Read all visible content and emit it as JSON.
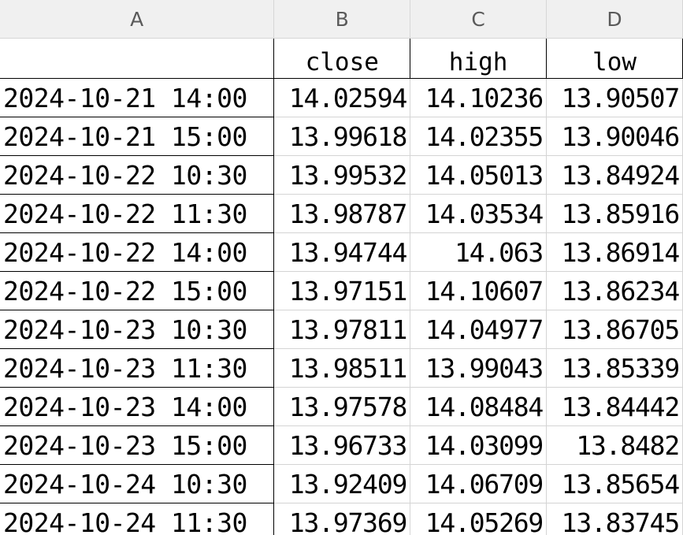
{
  "column_letters": [
    "A",
    "B",
    "C",
    "D"
  ],
  "headers": [
    "",
    "close",
    "high",
    "low"
  ],
  "rows": [
    {
      "datetime": "2024-10-21 14:00",
      "close": "14.02594",
      "high": "14.10236",
      "low": "13.90507"
    },
    {
      "datetime": "2024-10-21 15:00",
      "close": "13.99618",
      "high": "14.02355",
      "low": "13.90046"
    },
    {
      "datetime": "2024-10-22 10:30",
      "close": "13.99532",
      "high": "14.05013",
      "low": "13.84924"
    },
    {
      "datetime": "2024-10-22 11:30",
      "close": "13.98787",
      "high": "14.03534",
      "low": "13.85916"
    },
    {
      "datetime": "2024-10-22 14:00",
      "close": "13.94744",
      "high": "14.063",
      "low": "13.86914"
    },
    {
      "datetime": "2024-10-22 15:00",
      "close": "13.97151",
      "high": "14.10607",
      "low": "13.86234"
    },
    {
      "datetime": "2024-10-23 10:30",
      "close": "13.97811",
      "high": "14.04977",
      "low": "13.86705"
    },
    {
      "datetime": "2024-10-23 11:30",
      "close": "13.98511",
      "high": "13.99043",
      "low": "13.85339"
    },
    {
      "datetime": "2024-10-23 14:00",
      "close": "13.97578",
      "high": "14.08484",
      "low": "13.84442"
    },
    {
      "datetime": "2024-10-23 15:00",
      "close": "13.96733",
      "high": "14.03099",
      "low": "13.8482"
    },
    {
      "datetime": "2024-10-24 10:30",
      "close": "13.92409",
      "high": "14.06709",
      "low": "13.85654"
    },
    {
      "datetime": "2024-10-24 11:30",
      "close": "13.97369",
      "high": "14.05269",
      "low": "13.83745"
    }
  ]
}
